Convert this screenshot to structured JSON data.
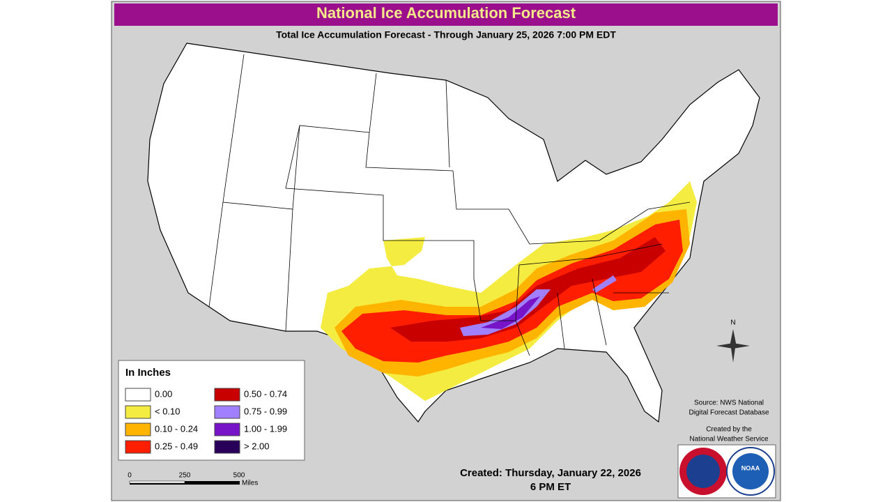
{
  "header": {
    "title": "National Ice Accumulation Forecast",
    "subtitle": "Total Ice Accumulation Forecast - Through January 25, 2026 7:00 PM EDT"
  },
  "legend": {
    "title": "In Inches",
    "items": [
      {
        "label": "0.00",
        "color": "#ffffff"
      },
      {
        "label": "< 0.10",
        "color": "#f5ec42"
      },
      {
        "label": "0.10 - 0.24",
        "color": "#ffb400"
      },
      {
        "label": "0.25 - 0.49",
        "color": "#ff1e00"
      },
      {
        "label": "0.50 - 0.74",
        "color": "#c80000"
      },
      {
        "label": "0.75 - 0.99",
        "color": "#a080ff"
      },
      {
        "label": "1.00 - 1.99",
        "color": "#7814c8"
      },
      {
        "label": "> 2.00",
        "color": "#28005a"
      }
    ]
  },
  "scale": {
    "ticks": [
      "0",
      "250",
      "500"
    ],
    "unit": "Miles"
  },
  "compass": "N",
  "source": [
    "Source: NWS National",
    "Digital Forecast Database"
  ],
  "credit": [
    "Created by the",
    "National Weather Service"
  ],
  "created": [
    "Created: Thursday, January 22, 2026",
    "6 PM ET"
  ],
  "logo": "NOAA"
}
